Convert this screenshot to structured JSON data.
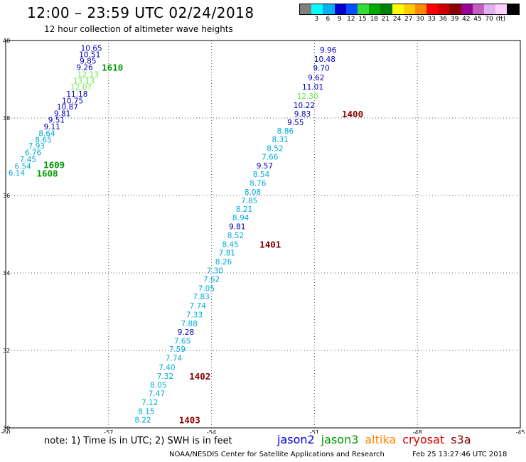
{
  "header": {
    "title": "12:00 – 23:59 UTC 02/24/2018",
    "subtitle": "12 hour collection of altimeter wave heights"
  },
  "scale": {
    "colors": [
      "#808080",
      "#00ffff",
      "#00b0f0",
      "#0000cd",
      "#0050ff",
      "#33dd33",
      "#00aa00",
      "#008000",
      "#ffff00",
      "#ffcc00",
      "#ff8c00",
      "#ff0000",
      "#cc0000",
      "#8b0000",
      "#990099",
      "#c060c0",
      "#e0b0f0",
      "#ffd0ff",
      "#000000"
    ],
    "labels": [
      "3",
      "6",
      "9",
      "12",
      "15",
      "18",
      "21",
      "24",
      "27",
      "30",
      "33",
      "36",
      "39",
      "42",
      "45",
      "70",
      "(ft)"
    ]
  },
  "chart_data": {
    "type": "scatter",
    "x_ticks": [
      "-60",
      "-57",
      "-54",
      "-51",
      "-48",
      "-45"
    ],
    "y_ticks": [
      "40",
      "38",
      "36",
      "34",
      "32",
      "30"
    ],
    "xlim": [
      -60,
      -45
    ],
    "ylim": [
      30,
      40
    ],
    "grid": true,
    "points": [
      {
        "x": -57.5,
        "y": 39.81,
        "v": "10.65",
        "c": "#0000bb"
      },
      {
        "x": -57.55,
        "y": 39.64,
        "v": "10.51",
        "c": "#0000bb"
      },
      {
        "x": -57.6,
        "y": 39.48,
        "v": "9.85",
        "c": "#0000bb"
      },
      {
        "x": -57.7,
        "y": 39.31,
        "v": "9.26",
        "c": "#0000bb"
      },
      {
        "x": -57.6,
        "y": 39.13,
        "v": "12.13",
        "c": "#66ee44"
      },
      {
        "x": -57.72,
        "y": 38.96,
        "v": "13.13",
        "c": "#66ee44"
      },
      {
        "x": -57.8,
        "y": 38.8,
        "v": "12.07",
        "c": "#66ee44"
      },
      {
        "x": -57.92,
        "y": 38.62,
        "v": "11.18",
        "c": "#0000bb"
      },
      {
        "x": -58.05,
        "y": 38.45,
        "v": "10.75",
        "c": "#0000bb"
      },
      {
        "x": -58.2,
        "y": 38.29,
        "v": "10.87",
        "c": "#0000bb"
      },
      {
        "x": -58.35,
        "y": 38.12,
        "v": "9.81",
        "c": "#0000bb"
      },
      {
        "x": -58.52,
        "y": 37.95,
        "v": "9.51",
        "c": "#0000bb"
      },
      {
        "x": -58.65,
        "y": 37.78,
        "v": "9.11",
        "c": "#0000bb"
      },
      {
        "x": -58.8,
        "y": 37.61,
        "v": "8.64",
        "c": "#00aadd"
      },
      {
        "x": -58.9,
        "y": 37.44,
        "v": "8.65",
        "c": "#00aadd"
      },
      {
        "x": -59.1,
        "y": 37.28,
        "v": "7.93",
        "c": "#00aadd"
      },
      {
        "x": -59.2,
        "y": 37.11,
        "v": "6.76",
        "c": "#00aadd"
      },
      {
        "x": -59.35,
        "y": 36.94,
        "v": "7.45",
        "c": "#00aadd"
      },
      {
        "x": -59.5,
        "y": 36.76,
        "v": "6.54",
        "c": "#00aadd"
      },
      {
        "x": -59.68,
        "y": 36.59,
        "v": "6.14",
        "c": "#00aadd"
      },
      {
        "x": -50.6,
        "y": 39.76,
        "v": "9.96",
        "c": "#0000bb"
      },
      {
        "x": -50.7,
        "y": 39.52,
        "v": "10.48",
        "c": "#0000bb"
      },
      {
        "x": -50.8,
        "y": 39.29,
        "v": "9.70",
        "c": "#0000bb"
      },
      {
        "x": -50.95,
        "y": 39.05,
        "v": "9.62",
        "c": "#0000bb"
      },
      {
        "x": -51.05,
        "y": 38.81,
        "v": "11.01",
        "c": "#0000bb"
      },
      {
        "x": -51.2,
        "y": 38.57,
        "v": "12.30",
        "c": "#66ee44"
      },
      {
        "x": -51.3,
        "y": 38.33,
        "v": "10.22",
        "c": "#0000bb"
      },
      {
        "x": -51.35,
        "y": 38.11,
        "v": "9.83",
        "c": "#0000bb"
      },
      {
        "x": -51.55,
        "y": 37.89,
        "v": "9.55",
        "c": "#0000bb"
      },
      {
        "x": -51.85,
        "y": 37.67,
        "v": "8.86",
        "c": "#00aadd"
      },
      {
        "x": -52.0,
        "y": 37.45,
        "v": "8.31",
        "c": "#00aadd"
      },
      {
        "x": -52.15,
        "y": 37.22,
        "v": "8.52",
        "c": "#00aadd"
      },
      {
        "x": -52.3,
        "y": 37.0,
        "v": "7.66",
        "c": "#00aadd"
      },
      {
        "x": -52.45,
        "y": 36.77,
        "v": "9.57",
        "c": "#0000bb"
      },
      {
        "x": -52.55,
        "y": 36.55,
        "v": "8.54",
        "c": "#00aadd"
      },
      {
        "x": -52.65,
        "y": 36.32,
        "v": "8.76",
        "c": "#00aadd"
      },
      {
        "x": -52.8,
        "y": 36.09,
        "v": "8.08",
        "c": "#00aadd"
      },
      {
        "x": -52.9,
        "y": 35.87,
        "v": "7.85",
        "c": "#00aadd"
      },
      {
        "x": -53.05,
        "y": 35.65,
        "v": "8.21",
        "c": "#00aadd"
      },
      {
        "x": -53.15,
        "y": 35.43,
        "v": "8.94",
        "c": "#00aadd"
      },
      {
        "x": -53.25,
        "y": 35.2,
        "v": "9.81",
        "c": "#0000bb"
      },
      {
        "x": -53.3,
        "y": 34.97,
        "v": "8.52",
        "c": "#00aadd"
      },
      {
        "x": -53.45,
        "y": 34.74,
        "v": "8.45",
        "c": "#00aadd"
      },
      {
        "x": -53.55,
        "y": 34.52,
        "v": "7.81",
        "c": "#00aadd"
      },
      {
        "x": -53.65,
        "y": 34.29,
        "v": "8.26",
        "c": "#00aadd"
      },
      {
        "x": -53.9,
        "y": 34.06,
        "v": "7.30",
        "c": "#00aadd"
      },
      {
        "x": -54.0,
        "y": 33.84,
        "v": "7.62",
        "c": "#00aadd"
      },
      {
        "x": -54.15,
        "y": 33.61,
        "v": "7.05",
        "c": "#00aadd"
      },
      {
        "x": -54.3,
        "y": 33.39,
        "v": "7.83",
        "c": "#00aadd"
      },
      {
        "x": -54.4,
        "y": 33.16,
        "v": "7.74",
        "c": "#00aadd"
      },
      {
        "x": -54.5,
        "y": 32.93,
        "v": "7.33",
        "c": "#00aadd"
      },
      {
        "x": -54.65,
        "y": 32.7,
        "v": "7.88",
        "c": "#00aadd"
      },
      {
        "x": -54.75,
        "y": 32.48,
        "v": "9.28",
        "c": "#0000bb"
      },
      {
        "x": -54.85,
        "y": 32.25,
        "v": "7.65",
        "c": "#00aadd"
      },
      {
        "x": -55.0,
        "y": 32.04,
        "v": "7.59",
        "c": "#00aadd"
      },
      {
        "x": -55.1,
        "y": 31.81,
        "v": "7.74",
        "c": "#00aadd"
      },
      {
        "x": -55.3,
        "y": 31.57,
        "v": "7.40",
        "c": "#00aadd"
      },
      {
        "x": -55.35,
        "y": 31.34,
        "v": "7.32",
        "c": "#00aadd"
      },
      {
        "x": -55.55,
        "y": 31.11,
        "v": "8.05",
        "c": "#00aadd"
      },
      {
        "x": -55.6,
        "y": 30.89,
        "v": "7.47",
        "c": "#00aadd"
      },
      {
        "x": -55.8,
        "y": 30.66,
        "v": "7.12",
        "c": "#00aadd"
      },
      {
        "x": -55.9,
        "y": 30.43,
        "v": "8.15",
        "c": "#00aadd"
      },
      {
        "x": -56.0,
        "y": 30.21,
        "v": "8.22",
        "c": "#00aadd"
      }
    ],
    "pass_labels": [
      {
        "x": -57.2,
        "y": 39.31,
        "text": "1610",
        "c": "#009900"
      },
      {
        "x": -58.9,
        "y": 36.8,
        "text": "1609",
        "c": "#009900"
      },
      {
        "x": -59.1,
        "y": 36.58,
        "text": "1608",
        "c": "#009900"
      },
      {
        "x": -50.2,
        "y": 38.11,
        "text": "1400",
        "c": "#880000"
      },
      {
        "x": -52.6,
        "y": 34.74,
        "text": "1401",
        "c": "#880000"
      },
      {
        "x": -54.65,
        "y": 31.34,
        "text": "1402",
        "c": "#880000"
      },
      {
        "x": -54.95,
        "y": 30.21,
        "text": "1403",
        "c": "#880000"
      }
    ]
  },
  "note": "note: 1) Time is in UTC; 2) SWH is in feet",
  "legend": [
    {
      "label": "jason2",
      "color": "#0000dd"
    },
    {
      "label": "jason3",
      "color": "#009900"
    },
    {
      "label": "altika",
      "color": "#ff8800"
    },
    {
      "label": "cryosat",
      "color": "#dd0000"
    },
    {
      "label": "s3a",
      "color": "#880000"
    }
  ],
  "credit": "NOAA/NESDIS Center for Satellite Applications and Research",
  "timestamp": "Feb 25 13:27:46 UTC 2018"
}
